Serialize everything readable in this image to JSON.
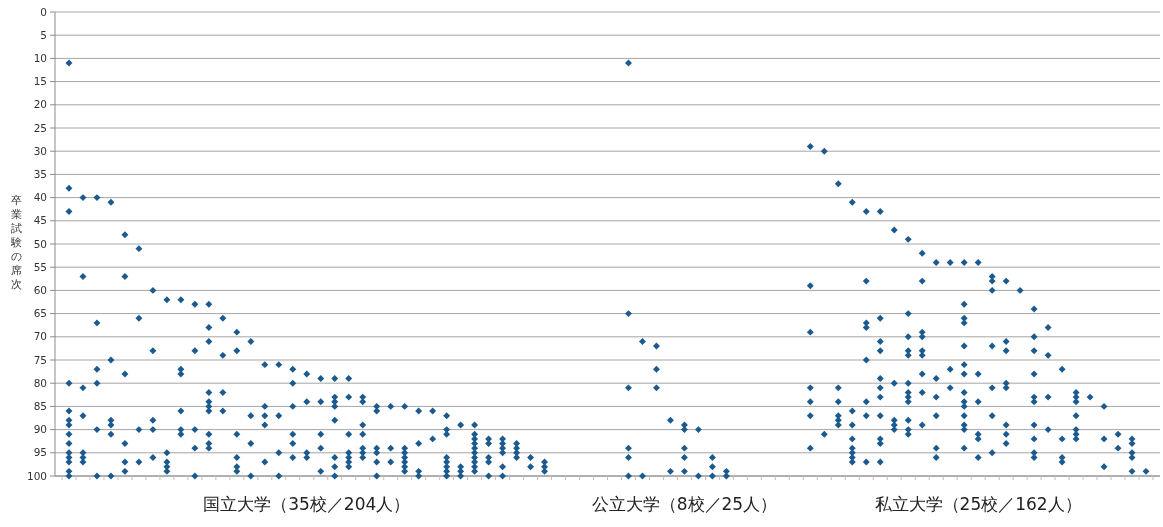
{
  "chart_data": {
    "type": "scatter",
    "ylabel": "卒業試験の席次",
    "categories": [
      null,
      null,
      null,
      null,
      null,
      null,
      null,
      null,
      null,
      null,
      null,
      null,
      null,
      null,
      null,
      null,
      null,
      "国立大学（35校／204人）",
      null,
      null,
      null,
      null,
      null,
      null,
      null,
      null,
      null,
      null,
      null,
      null,
      null,
      null,
      null,
      null,
      null,
      null,
      null,
      null,
      null,
      null,
      null,
      null,
      null,
      null,
      "公立大学（8校／25人）",
      null,
      null,
      null,
      null,
      null,
      null,
      null,
      null,
      null,
      null,
      null,
      null,
      null,
      null,
      null,
      null,
      null,
      null,
      null,
      null,
      "私立大学（25校／162人）",
      null,
      null,
      null,
      null,
      null,
      null,
      null,
      null,
      null,
      null,
      null,
      null
    ],
    "ylim": [
      100,
      0
    ],
    "yticks": [
      0,
      5,
      10,
      15,
      20,
      25,
      30,
      35,
      40,
      45,
      50,
      55,
      60,
      65,
      70,
      75,
      80,
      85,
      90,
      95,
      100
    ],
    "grid": "y",
    "marker": "diamond",
    "series": [
      {
        "color": "#1b5a8e",
        "values": [
          11,
          40,
          40,
          41,
          48,
          51,
          60,
          62,
          62,
          63,
          63,
          66,
          69,
          71,
          76,
          76,
          77,
          78,
          79,
          79,
          79,
          83,
          85,
          85,
          85,
          86,
          86,
          87,
          89,
          89,
          92,
          92,
          93,
          96,
          97,
          null,
          null,
          null,
          null,
          null,
          11,
          71,
          72,
          88,
          89,
          90,
          96,
          99,
          null,
          null,
          null,
          null,
          null,
          29,
          30,
          37,
          41,
          43,
          43,
          47,
          49,
          52,
          54,
          54,
          54,
          54,
          57,
          58,
          60,
          64,
          68,
          77,
          82,
          83,
          85,
          91,
          92,
          99
        ]
      },
      {
        "color": "#1b5a8e",
        "values": [
          38,
          57,
          67,
          75,
          57,
          66,
          73,
          95,
          77,
          73,
          68,
          74,
          73,
          87,
          85,
          87,
          80,
          84,
          84,
          83,
          83,
          84,
          86,
          94,
          94,
          93,
          92,
          90,
          98,
          91,
          93,
          93,
          94,
          98,
          98,
          null,
          null,
          null,
          null,
          null,
          65,
          100,
          77,
          99,
          90,
          100,
          98,
          100,
          null,
          null,
          null,
          null,
          null,
          59,
          91,
          81,
          86,
          58,
          66,
          80,
          65,
          58,
          79,
          77,
          63,
          78,
          58,
          71,
          null,
          70,
          74,
          92,
          83,
          null,
          92,
          94,
          93,
          null
        ]
      },
      {
        "color": "#1b5a8e",
        "values": [
          43,
          81,
          77,
          88,
          78,
          90,
          88,
          97,
          78,
          90,
          71,
          82,
          91,
          93,
          87,
          95,
          85,
          95,
          91,
          84,
          91,
          89,
          94,
          97,
          95,
          99,
          null,
          91,
          99,
          92,
          96,
          94,
          95,
          null,
          99,
          null,
          null,
          null,
          null,
          null,
          81,
          null,
          81,
          null,
          94,
          null,
          100,
          null,
          null,
          null,
          null,
          null,
          null,
          69,
          null,
          84,
          89,
          67,
          71,
          88,
          70,
          69,
          83,
          81,
          66,
          84,
          60,
          73,
          null,
          73,
          83,
          96,
          84,
          null,
          98,
          null,
          95,
          null
        ]
      },
      {
        "color": "#1b5a8e",
        "values": [
          80,
          87,
          80,
          89,
          93,
          97,
          90,
          98,
          86,
          94,
          82,
          86,
          96,
          100,
          89,
          100,
          91,
          96,
          94,
          85,
          95,
          91,
          95,
          null,
          96,
          100,
          null,
          96,
          100,
          93,
          97,
          95,
          96,
          null,
          null,
          null,
          null,
          null,
          null,
          null,
          94,
          null,
          null,
          null,
          96,
          null,
          null,
          null,
          null,
          null,
          null,
          null,
          null,
          81,
          null,
          87,
          92,
          68,
          73,
          89,
          73,
          70,
          87,
          null,
          67,
          91,
          72,
          80,
          null,
          78,
          90,
          97,
          87,
          null,
          null,
          null,
          96,
          null
        ]
      },
      {
        "color": "#1b5a8e",
        "values": [
          86,
          95,
          90,
          91,
          97,
          null,
          96,
          99,
          90,
          100,
          84,
          null,
          98,
          null,
          97,
          null,
          93,
          null,
          99,
          88,
          96,
          94,
          97,
          null,
          97,
          null,
          null,
          97,
          null,
          94,
          100,
          98,
          null,
          null,
          null,
          null,
          null,
          null,
          null,
          null,
          96,
          null,
          null,
          null,
          99,
          null,
          null,
          null,
          null,
          null,
          null,
          null,
          null,
          84,
          null,
          88,
          94,
          75,
          79,
          90,
          74,
          73,
          94,
          null,
          72,
          92,
          81,
          81,
          null,
          83,
          null,
          null,
          90,
          null,
          null,
          null,
          99,
          null
        ]
      },
      {
        "color": "#1b5a8e",
        "values": [
          88,
          96,
          100,
          100,
          99,
          null,
          null,
          null,
          91,
          null,
          85,
          null,
          99,
          null,
          null,
          null,
          96,
          null,
          null,
          96,
          97,
          95,
          100,
          null,
          98,
          null,
          null,
          98,
          null,
          95,
          null,
          100,
          null,
          null,
          null,
          null,
          null,
          null,
          null,
          null,
          100,
          null,
          null,
          null,
          null,
          null,
          null,
          null,
          null,
          null,
          null,
          null,
          null,
          87,
          null,
          89,
          95,
          84,
          81,
          null,
          80,
          74,
          96,
          null,
          76,
          96,
          87,
          89,
          null,
          84,
          null,
          null,
          91,
          null,
          null,
          null,
          null,
          null
        ]
      },
      {
        "color": "#1b5a8e",
        "values": [
          89,
          97,
          null,
          null,
          null,
          null,
          null,
          null,
          null,
          null,
          86,
          null,
          null,
          null,
          null,
          null,
          null,
          null,
          null,
          98,
          98,
          96,
          null,
          null,
          99,
          null,
          null,
          99,
          null,
          96,
          null,
          null,
          null,
          null,
          null,
          null,
          null,
          null,
          null,
          null,
          null,
          null,
          null,
          null,
          null,
          null,
          null,
          null,
          null,
          null,
          null,
          null,
          null,
          94,
          null,
          null,
          96,
          87,
          83,
          null,
          82,
          78,
          null,
          null,
          78,
          null,
          95,
          91,
          null,
          89,
          null,
          null,
          92,
          null,
          null,
          null,
          null,
          null
        ]
      },
      {
        "color": "#1b5a8e",
        "values": [
          91,
          null,
          null,
          null,
          null,
          null,
          null,
          null,
          null,
          null,
          91,
          null,
          null,
          null,
          null,
          null,
          null,
          null,
          null,
          100,
          null,
          null,
          null,
          null,
          null,
          null,
          null,
          100,
          null,
          97,
          null,
          null,
          null,
          null,
          null,
          null,
          null,
          null,
          null,
          null,
          null,
          null,
          null,
          null,
          null,
          null,
          null,
          null,
          null,
          null,
          null,
          null,
          null,
          null,
          null,
          null,
          97,
          97,
          87,
          null,
          83,
          82,
          null,
          null,
          82,
          null,
          null,
          93,
          null,
          92,
          null,
          null,
          null,
          null,
          null,
          null,
          null,
          null
        ]
      },
      {
        "color": "#1b5a8e",
        "values": [
          93,
          null,
          null,
          null,
          null,
          null,
          null,
          null,
          null,
          null,
          93,
          null,
          null,
          null,
          null,
          null,
          null,
          null,
          null,
          null,
          null,
          null,
          null,
          null,
          null,
          null,
          null,
          null,
          null,
          98,
          null,
          null,
          null,
          null,
          null,
          null,
          null,
          null,
          null,
          null,
          null,
          null,
          null,
          null,
          null,
          null,
          null,
          null,
          null,
          null,
          null,
          null,
          null,
          null,
          null,
          null,
          null,
          null,
          92,
          null,
          84,
          89,
          null,
          null,
          84,
          null,
          null,
          null,
          null,
          95,
          null,
          null,
          null,
          null,
          null,
          null,
          null,
          null
        ]
      },
      {
        "color": "#1b5a8e",
        "values": [
          95,
          null,
          null,
          null,
          null,
          null,
          null,
          null,
          null,
          null,
          94,
          null,
          null,
          null,
          null,
          null,
          null,
          null,
          null,
          null,
          null,
          null,
          null,
          null,
          null,
          null,
          null,
          null,
          null,
          99,
          null,
          null,
          null,
          null,
          null,
          null,
          null,
          null,
          null,
          null,
          null,
          null,
          null,
          null,
          null,
          null,
          null,
          null,
          null,
          null,
          null,
          null,
          null,
          null,
          null,
          null,
          null,
          null,
          93,
          null,
          88,
          null,
          null,
          null,
          85,
          null,
          null,
          null,
          null,
          96,
          null,
          null,
          null,
          null,
          null,
          null,
          null,
          null
        ]
      },
      {
        "color": "#1b5a8e",
        "values": [
          96,
          null,
          null,
          null,
          null,
          null,
          null,
          null,
          null,
          null,
          null,
          null,
          null,
          null,
          null,
          null,
          null,
          null,
          null,
          null,
          null,
          null,
          null,
          null,
          null,
          null,
          null,
          null,
          null,
          null,
          null,
          null,
          null,
          null,
          null,
          null,
          null,
          null,
          null,
          null,
          null,
          null,
          null,
          null,
          null,
          null,
          null,
          null,
          null,
          null,
          null,
          null,
          null,
          null,
          null,
          null,
          null,
          null,
          97,
          null,
          90,
          null,
          null,
          null,
          87,
          null,
          null,
          null,
          null,
          null,
          null,
          null,
          null,
          null,
          null,
          null,
          null,
          null
        ]
      },
      {
        "color": "#1b5a8e",
        "values": [
          97,
          null,
          null,
          null,
          null,
          null,
          null,
          null,
          null,
          null,
          null,
          null,
          null,
          null,
          null,
          null,
          null,
          null,
          null,
          null,
          null,
          null,
          null,
          null,
          null,
          null,
          null,
          null,
          null,
          null,
          null,
          null,
          null,
          null,
          null,
          null,
          null,
          null,
          null,
          null,
          null,
          null,
          null,
          null,
          null,
          null,
          null,
          null,
          null,
          null,
          null,
          null,
          null,
          null,
          null,
          null,
          null,
          null,
          null,
          null,
          91,
          null,
          null,
          null,
          89,
          null,
          null,
          null,
          null,
          null,
          null,
          null,
          null,
          null,
          null,
          null,
          null,
          null
        ]
      },
      {
        "color": "#1b5a8e",
        "values": [
          99,
          null,
          null,
          null,
          null,
          null,
          null,
          null,
          null,
          null,
          null,
          null,
          null,
          null,
          null,
          null,
          null,
          null,
          null,
          null,
          null,
          null,
          null,
          null,
          null,
          null,
          null,
          null,
          null,
          null,
          null,
          null,
          null,
          null,
          null,
          null,
          null,
          null,
          null,
          null,
          null,
          null,
          null,
          null,
          null,
          null,
          null,
          null,
          null,
          null,
          null,
          null,
          null,
          null,
          null,
          null,
          null,
          null,
          null,
          null,
          null,
          null,
          null,
          null,
          90,
          null,
          null,
          null,
          null,
          null,
          null,
          null,
          null,
          null,
          null,
          null,
          null,
          null
        ]
      },
      {
        "color": "#1b5a8e",
        "values": [
          100,
          null,
          null,
          null,
          null,
          null,
          null,
          null,
          null,
          null,
          null,
          null,
          null,
          null,
          null,
          null,
          null,
          null,
          null,
          null,
          null,
          null,
          null,
          null,
          null,
          null,
          null,
          null,
          null,
          null,
          null,
          null,
          null,
          null,
          null,
          null,
          null,
          null,
          null,
          null,
          null,
          null,
          null,
          null,
          null,
          null,
          null,
          null,
          null,
          null,
          null,
          null,
          null,
          null,
          null,
          null,
          null,
          null,
          null,
          null,
          null,
          null,
          null,
          null,
          94,
          null,
          null,
          null,
          null,
          null,
          null,
          null,
          null,
          null,
          null,
          null,
          null,
          null
        ]
      }
    ]
  }
}
